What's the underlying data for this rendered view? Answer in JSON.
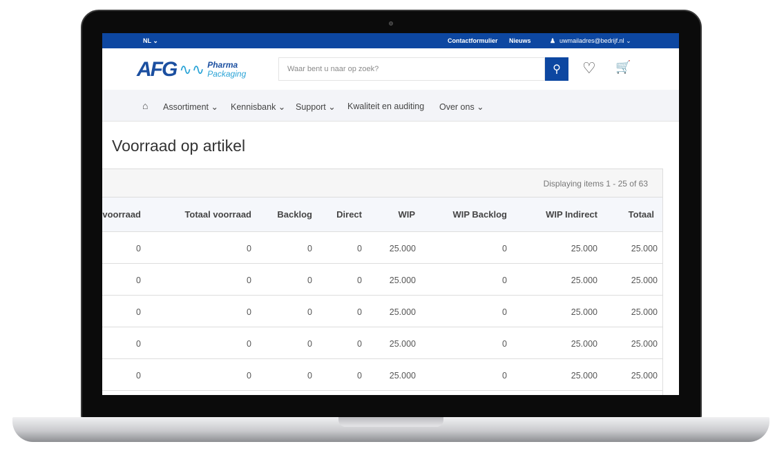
{
  "topbar": {
    "language": "NL ⌄",
    "contact": "Contactformulier",
    "news": "Nieuws",
    "user": "uwmailadres@bedrijf.nl ⌄"
  },
  "header": {
    "logo_text": "AFG",
    "logo_sub1": "Pharma",
    "logo_sub2": "Packaging",
    "search_placeholder": "Waar bent u naar op zoek?"
  },
  "nav": {
    "items": [
      "Assortiment ⌄",
      "Kennisbank ⌄",
      "Support ⌄",
      "Kwaliteit en auditing",
      "Over ons ⌄"
    ]
  },
  "page": {
    "title": "Voorraad op artikel",
    "paging": "Displaying items 1 - 25 of 63"
  },
  "table": {
    "columns": [
      "voorraad",
      "Totaal voorraad",
      "Backlog",
      "Direct",
      "WIP",
      "WIP Backlog",
      "WIP Indirect",
      "Totaal"
    ],
    "rows": [
      [
        "0",
        "0",
        "0",
        "0",
        "25.000",
        "0",
        "25.000",
        "25.000"
      ],
      [
        "0",
        "0",
        "0",
        "0",
        "25.000",
        "0",
        "25.000",
        "25.000"
      ],
      [
        "0",
        "0",
        "0",
        "0",
        "25.000",
        "0",
        "25.000",
        "25.000"
      ],
      [
        "0",
        "0",
        "0",
        "0",
        "25.000",
        "0",
        "25.000",
        "25.000"
      ],
      [
        "0",
        "0",
        "0",
        "0",
        "25.000",
        "0",
        "25.000",
        "25.000"
      ]
    ]
  },
  "colors": {
    "brand": "#0d47a1",
    "accent": "#29a3d6"
  }
}
